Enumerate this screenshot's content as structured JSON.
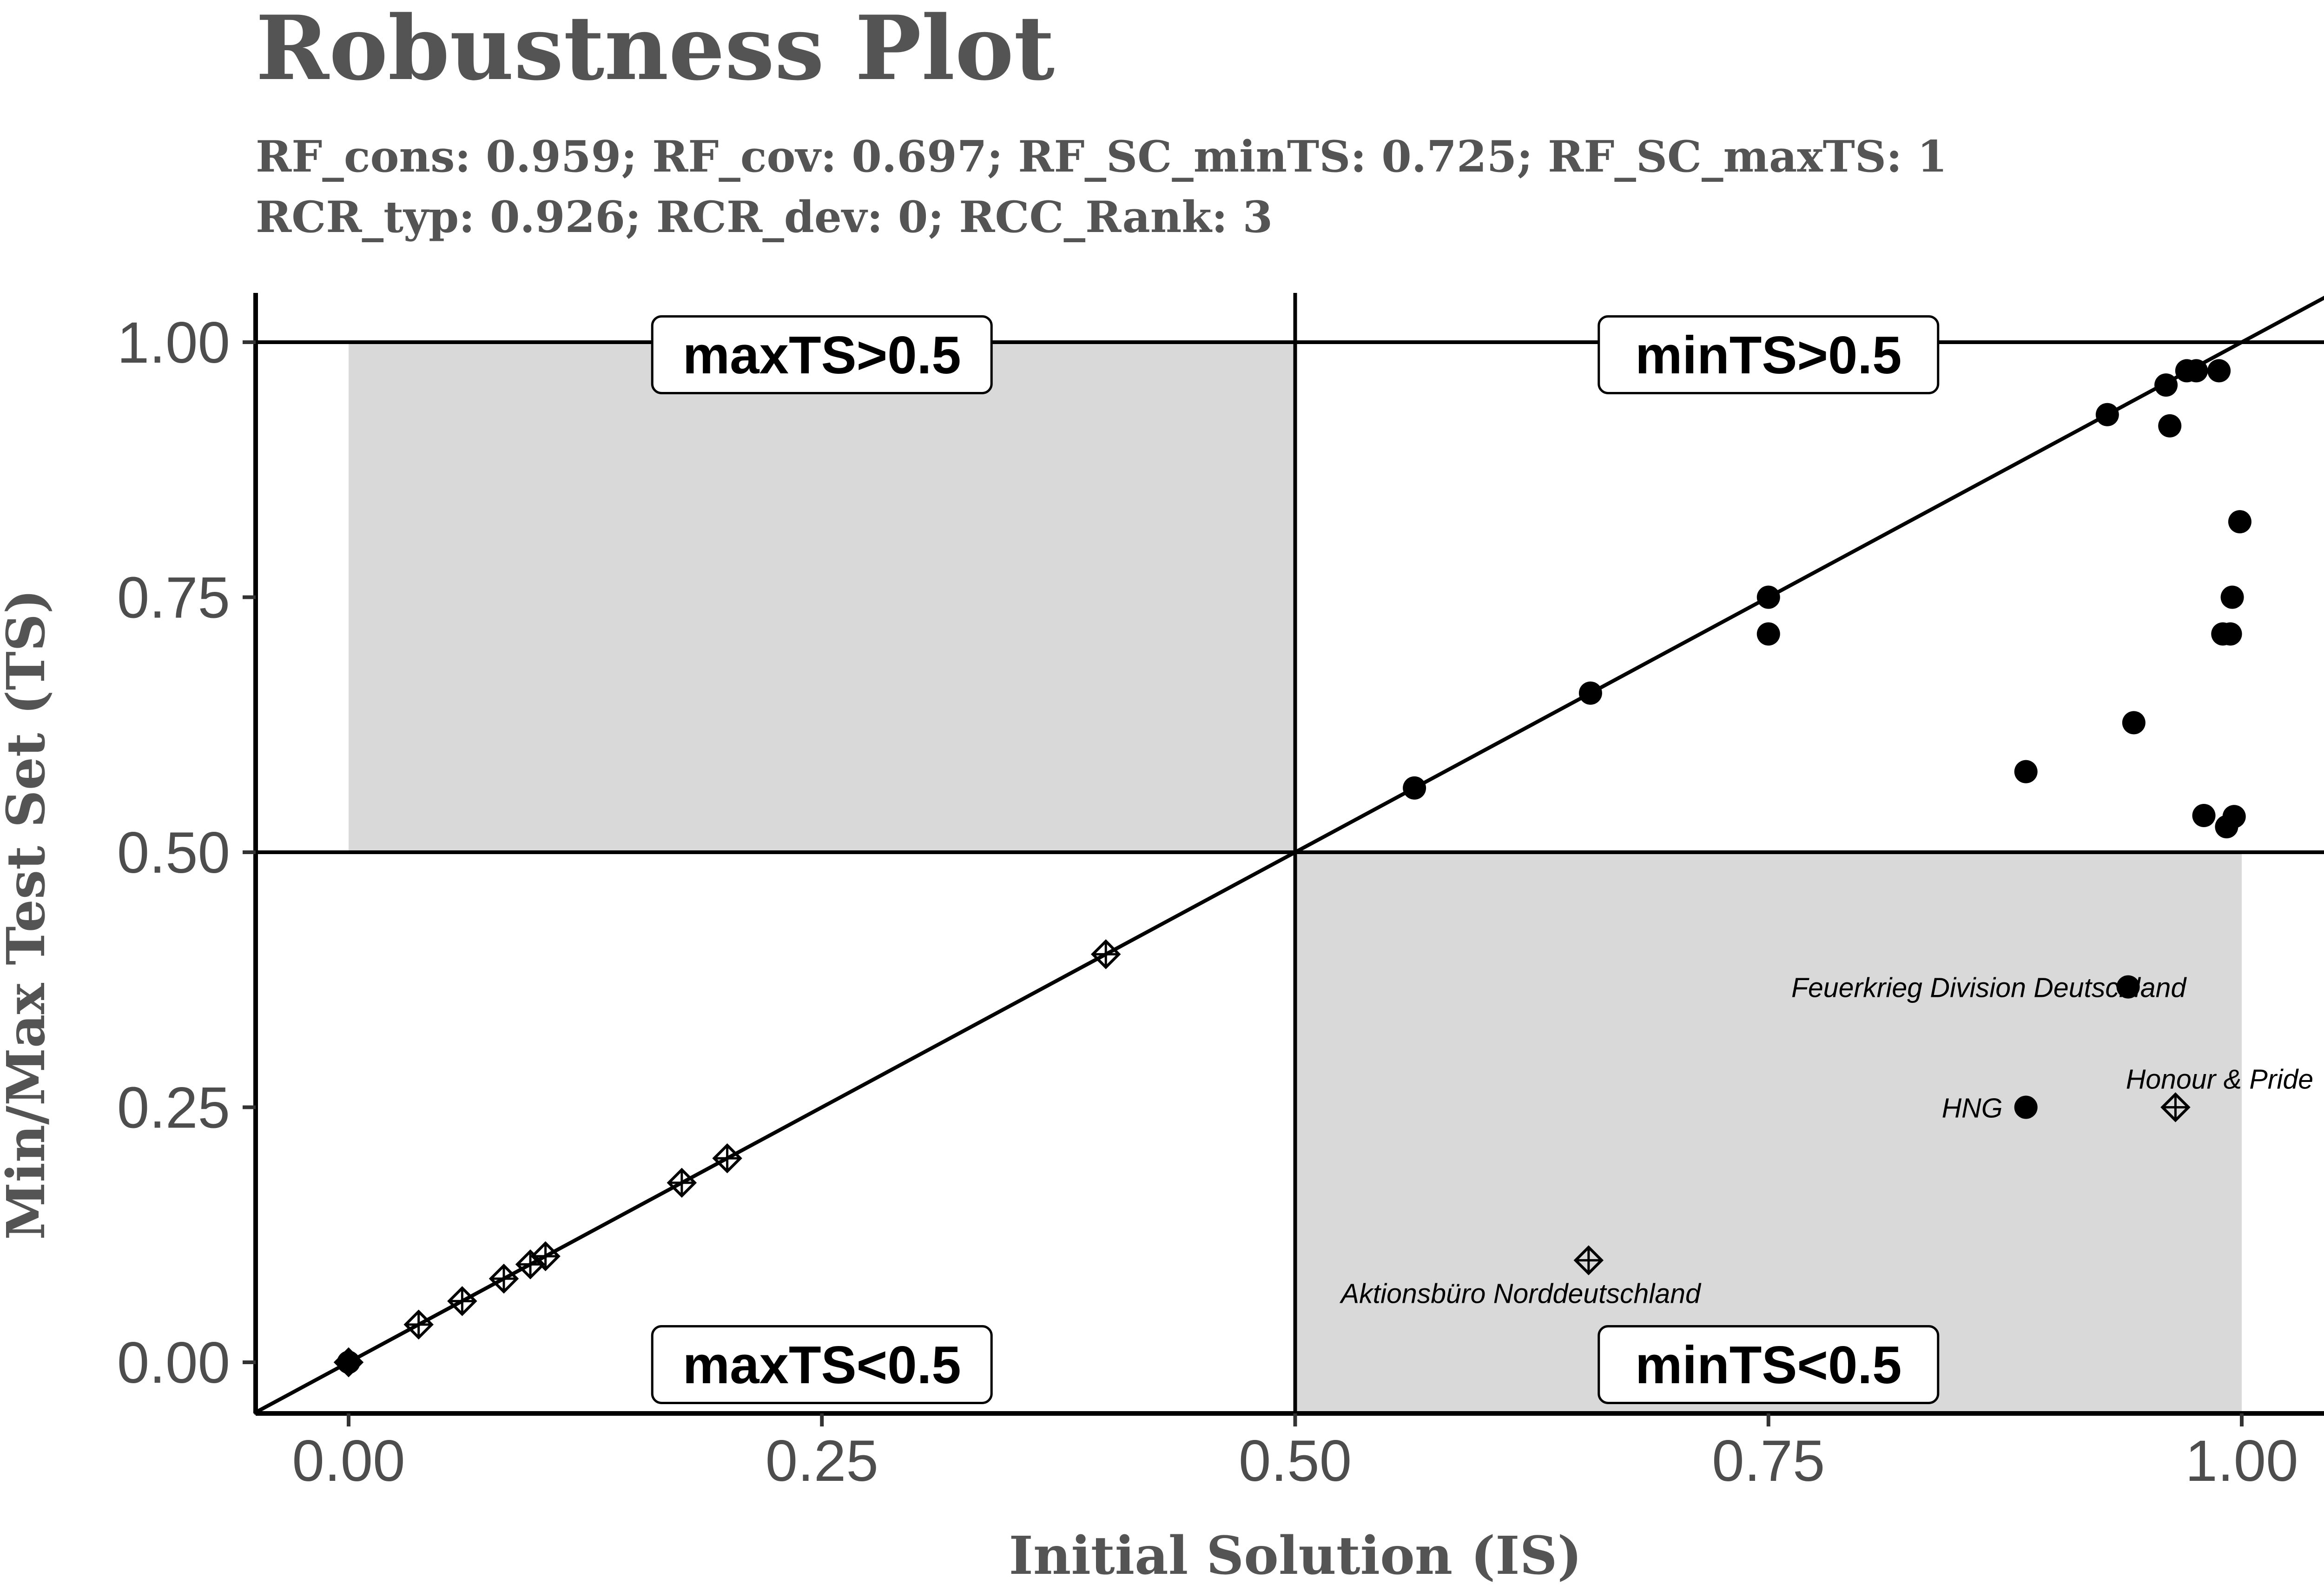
{
  "title": "Robustness Plot",
  "subtitle_line1": "RF_cons: 0.959; RF_cov: 0.697; RF_SC_minTS: 0.725; RF_SC_maxTS: 1",
  "subtitle_line2": "RCR_typ: 0.926; RCR_dev: 0; RCC_Rank: 3",
  "colors": {
    "shade": "#d9d9d9",
    "ink": "#000000",
    "text": "#545454",
    "tick_text": "#4d4d4d"
  },
  "chart_data": {
    "type": "scatter",
    "title": "Robustness Plot",
    "xlabel": "Initial Solution (IS)",
    "ylabel": "Min/Max Test Set (TS)",
    "xlim": [
      -0.05,
      1.05
    ],
    "ylim": [
      -0.05,
      1.05
    ],
    "x_ticks": [
      0,
      0.25,
      0.5,
      0.75,
      1
    ],
    "x_tick_labels": [
      "0.00",
      "0.25",
      "0.50",
      "0.75",
      "1.00"
    ],
    "y_ticks": [
      0,
      0.25,
      0.5,
      0.75,
      1
    ],
    "y_tick_labels": [
      "0.00",
      "0.25",
      "0.50",
      "0.75",
      "1.00"
    ],
    "grid": false,
    "reference_lines": {
      "diagonal": true,
      "horizontal": [
        0.5,
        1.0
      ],
      "vertical": [
        0.5
      ]
    },
    "shaded_regions": [
      {
        "x": [
          0,
          0.5
        ],
        "y": [
          0.5,
          1.0
        ]
      },
      {
        "x": [
          0.5,
          1.0
        ],
        "y": [
          -0.05,
          0.5
        ]
      }
    ],
    "quadrant_labels": [
      {
        "text": "maxTS>0.5",
        "x": 0.25,
        "y": 0.99
      },
      {
        "text": "minTS>0.5",
        "x": 0.75,
        "y": 0.99
      },
      {
        "text": "maxTS<0.5",
        "x": 0.25,
        "y": 0.0
      },
      {
        "text": "minTS<0.5",
        "x": 0.75,
        "y": 0.0
      }
    ],
    "series": [
      {
        "marker": "circle",
        "points": [
          [
            0.0,
            0.0
          ],
          [
            0.563,
            0.563
          ],
          [
            0.656,
            0.656
          ],
          [
            0.75,
            0.75
          ],
          [
            0.75,
            0.714
          ],
          [
            0.886,
            0.579
          ],
          [
            0.929,
            0.929
          ],
          [
            0.943,
            0.627
          ],
          [
            0.96,
            0.958
          ],
          [
            0.962,
            0.918
          ],
          [
            0.971,
            0.972
          ],
          [
            0.976,
            0.972
          ],
          [
            0.98,
            0.536
          ],
          [
            0.988,
            0.972
          ],
          [
            0.99,
            0.714
          ],
          [
            0.992,
            0.525
          ],
          [
            0.994,
            0.714
          ],
          [
            0.995,
            0.75
          ],
          [
            0.996,
            0.535
          ],
          [
            0.999,
            0.824
          ],
          [
            0.94,
            0.368
          ],
          [
            0.886,
            0.25
          ]
        ]
      },
      {
        "marker": "crossed-diamond",
        "points": [
          [
            0.0,
            0.0
          ],
          [
            0.037,
            0.037
          ],
          [
            0.06,
            0.06
          ],
          [
            0.082,
            0.082
          ],
          [
            0.096,
            0.096
          ],
          [
            0.104,
            0.104
          ],
          [
            0.176,
            0.176
          ],
          [
            0.2,
            0.2
          ],
          [
            0.4,
            0.4
          ],
          [
            0.655,
            0.1
          ],
          [
            0.965,
            0.25
          ]
        ]
      }
    ],
    "annotations": [
      {
        "text": "Feuerkrieg Division Deutschland",
        "x": 0.94,
        "y": 0.368,
        "anchor": "middle"
      },
      {
        "text": "HNG",
        "x": 0.886,
        "y": 0.25,
        "anchor": "end"
      },
      {
        "text": "Honour & Pride",
        "x": 0.965,
        "y": 0.25,
        "anchor": "middle"
      },
      {
        "text": "Aktionsbüro Norddeutschland",
        "x": 0.655,
        "y": 0.1,
        "anchor": "middle"
      }
    ]
  }
}
